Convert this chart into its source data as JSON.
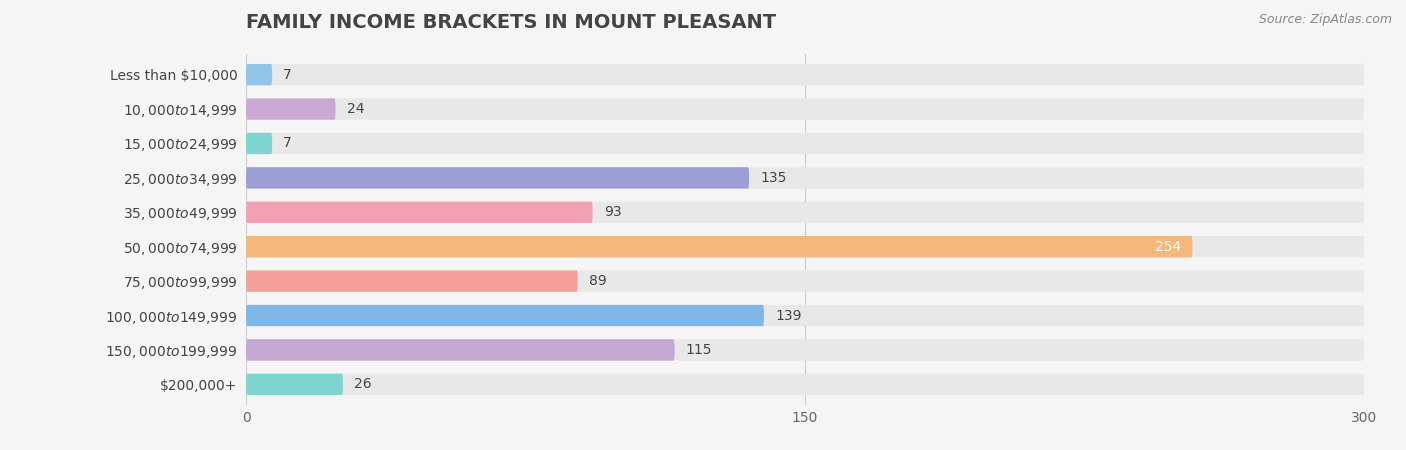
{
  "title": "FAMILY INCOME BRACKETS IN MOUNT PLEASANT",
  "source": "Source: ZipAtlas.com",
  "categories": [
    "Less than $10,000",
    "$10,000 to $14,999",
    "$15,000 to $24,999",
    "$25,000 to $34,999",
    "$35,000 to $49,999",
    "$50,000 to $74,999",
    "$75,000 to $99,999",
    "$100,000 to $149,999",
    "$150,000 to $199,999",
    "$200,000+"
  ],
  "values": [
    7,
    24,
    7,
    135,
    93,
    254,
    89,
    139,
    115,
    26
  ],
  "bar_colors": [
    "#92C5E8",
    "#C9A8D4",
    "#7ED4CE",
    "#9B9FD4",
    "#F4A0B5",
    "#F5B87A",
    "#F4A09A",
    "#7FB8E8",
    "#C4A8D4",
    "#7ED4CE"
  ],
  "bar_label_colors": [
    "#444444",
    "#444444",
    "#444444",
    "#444444",
    "#444444",
    "white",
    "#444444",
    "#444444",
    "#444444",
    "#444444"
  ],
  "xlim": [
    0,
    300
  ],
  "xticks": [
    0,
    150,
    300
  ],
  "background_color": "#f5f5f5",
  "bar_bg_color": "#e8e8e8",
  "title_fontsize": 14,
  "label_fontsize": 10,
  "value_fontsize": 10,
  "source_fontsize": 9
}
